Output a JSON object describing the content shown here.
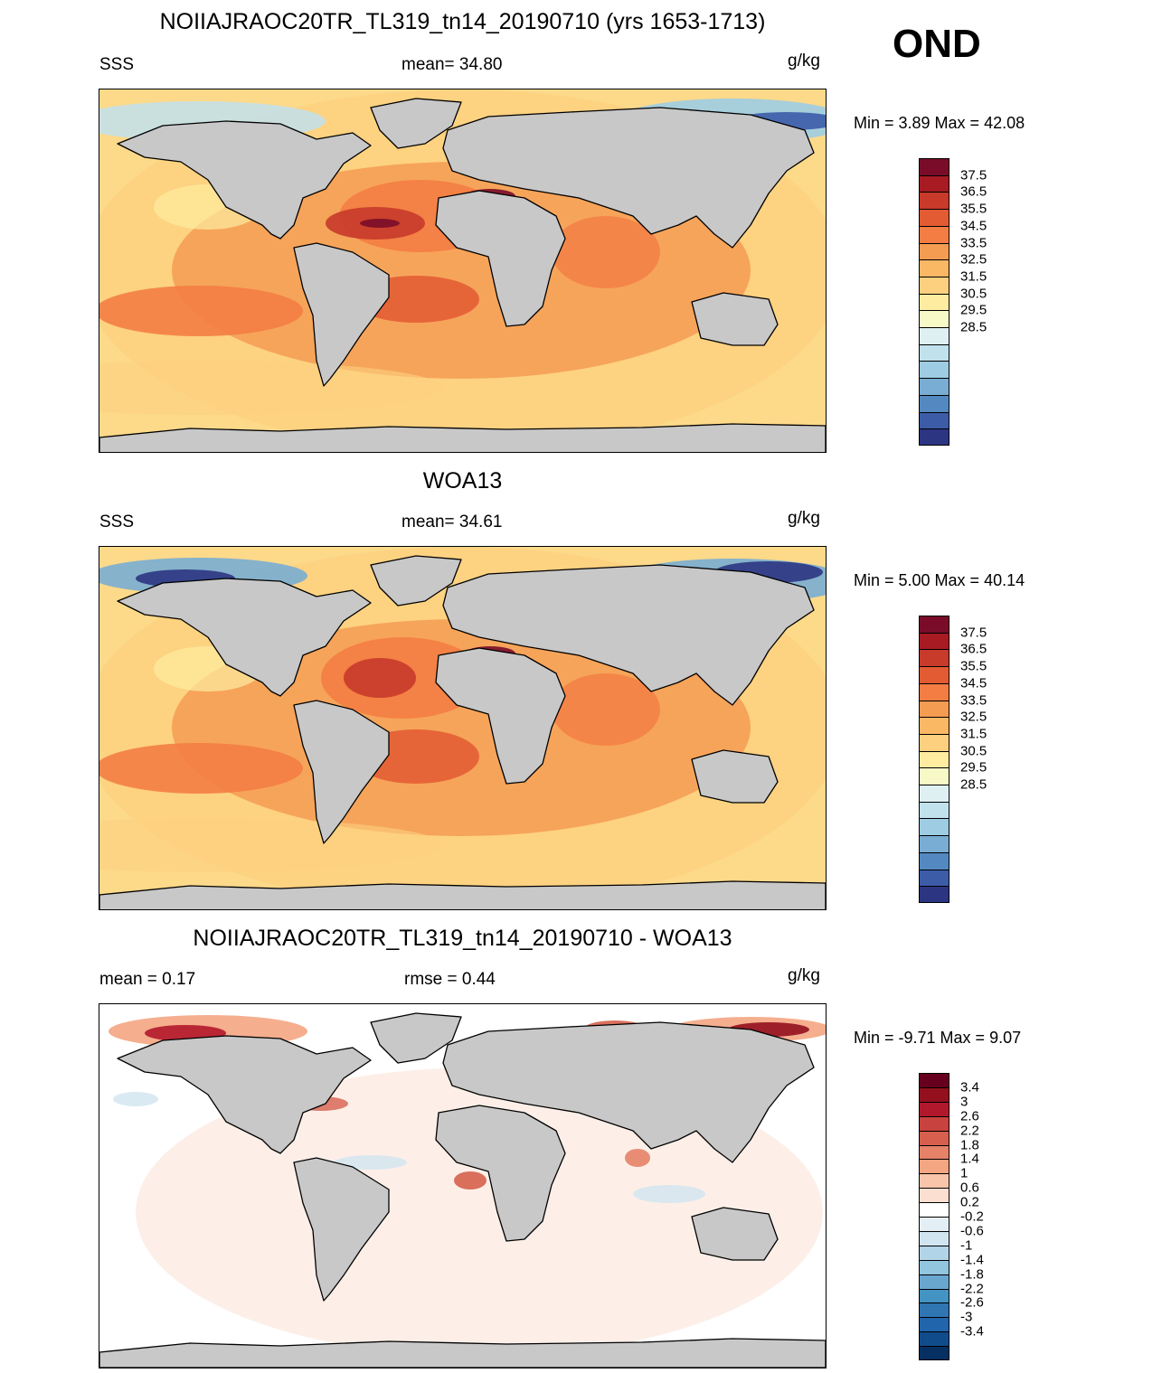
{
  "season": "OND",
  "panels": [
    {
      "title": "NOIIAJRAOC20TR_TL319_tn14_20190710 (yrs 1653-1713)",
      "left_label": "SSS",
      "center_label": "mean=  34.80",
      "right_label": "g/kg",
      "minmax": "Min =   3.89 Max =  42.08",
      "map_style": "sss_model"
    },
    {
      "title": "WOA13",
      "left_label": "SSS",
      "center_label": "mean=  34.61",
      "right_label": "g/kg",
      "minmax": "Min =   5.00 Max =  40.14",
      "map_style": "sss_obs"
    },
    {
      "title": "NOIIAJRAOC20TR_TL319_tn14_20190710 - WOA13",
      "left_label": "mean =   0.17",
      "center_label": "rmse =   0.44",
      "right_label": "g/kg",
      "minmax": "Min =  -9.71 Max =   9.07",
      "map_style": "diff"
    }
  ],
  "colorbar_sss": {
    "colors": [
      "#7a0c2a",
      "#a81b22",
      "#c83a2a",
      "#e35b32",
      "#f47d43",
      "#f59c53",
      "#fab764",
      "#fdd07f",
      "#feeda0",
      "#f7f9c6",
      "#dff0f3",
      "#c1e1ed",
      "#9dcce3",
      "#79add3",
      "#5389c0",
      "#3c5ca8",
      "#2c3582"
    ],
    "labels": [
      "37.5",
      "36.5",
      "35.5",
      "34.5",
      "33.5",
      "32.5",
      "31.5",
      "30.5",
      "29.5",
      "28.5"
    ]
  },
  "colorbar_diff": {
    "colors": [
      "#67001f",
      "#94101e",
      "#b2182b",
      "#c8433f",
      "#d6604d",
      "#e58267",
      "#f4a582",
      "#f8c4aa",
      "#fbe0d2",
      "#ffffff",
      "#e4eef5",
      "#d1e5f0",
      "#b2d4e8",
      "#92c5de",
      "#6aa7cf",
      "#4393c3",
      "#2f76b3",
      "#2166ac",
      "#104c8b",
      "#053061"
    ],
    "labels": [
      "3.4",
      "3",
      "2.6",
      "2.2",
      "1.8",
      "1.4",
      "1",
      "0.6",
      "0.2",
      "-0.2",
      "-0.6",
      "-1",
      "-1.4",
      "-1.8",
      "-2.2",
      "-2.6",
      "-3",
      "-3.4"
    ]
  }
}
